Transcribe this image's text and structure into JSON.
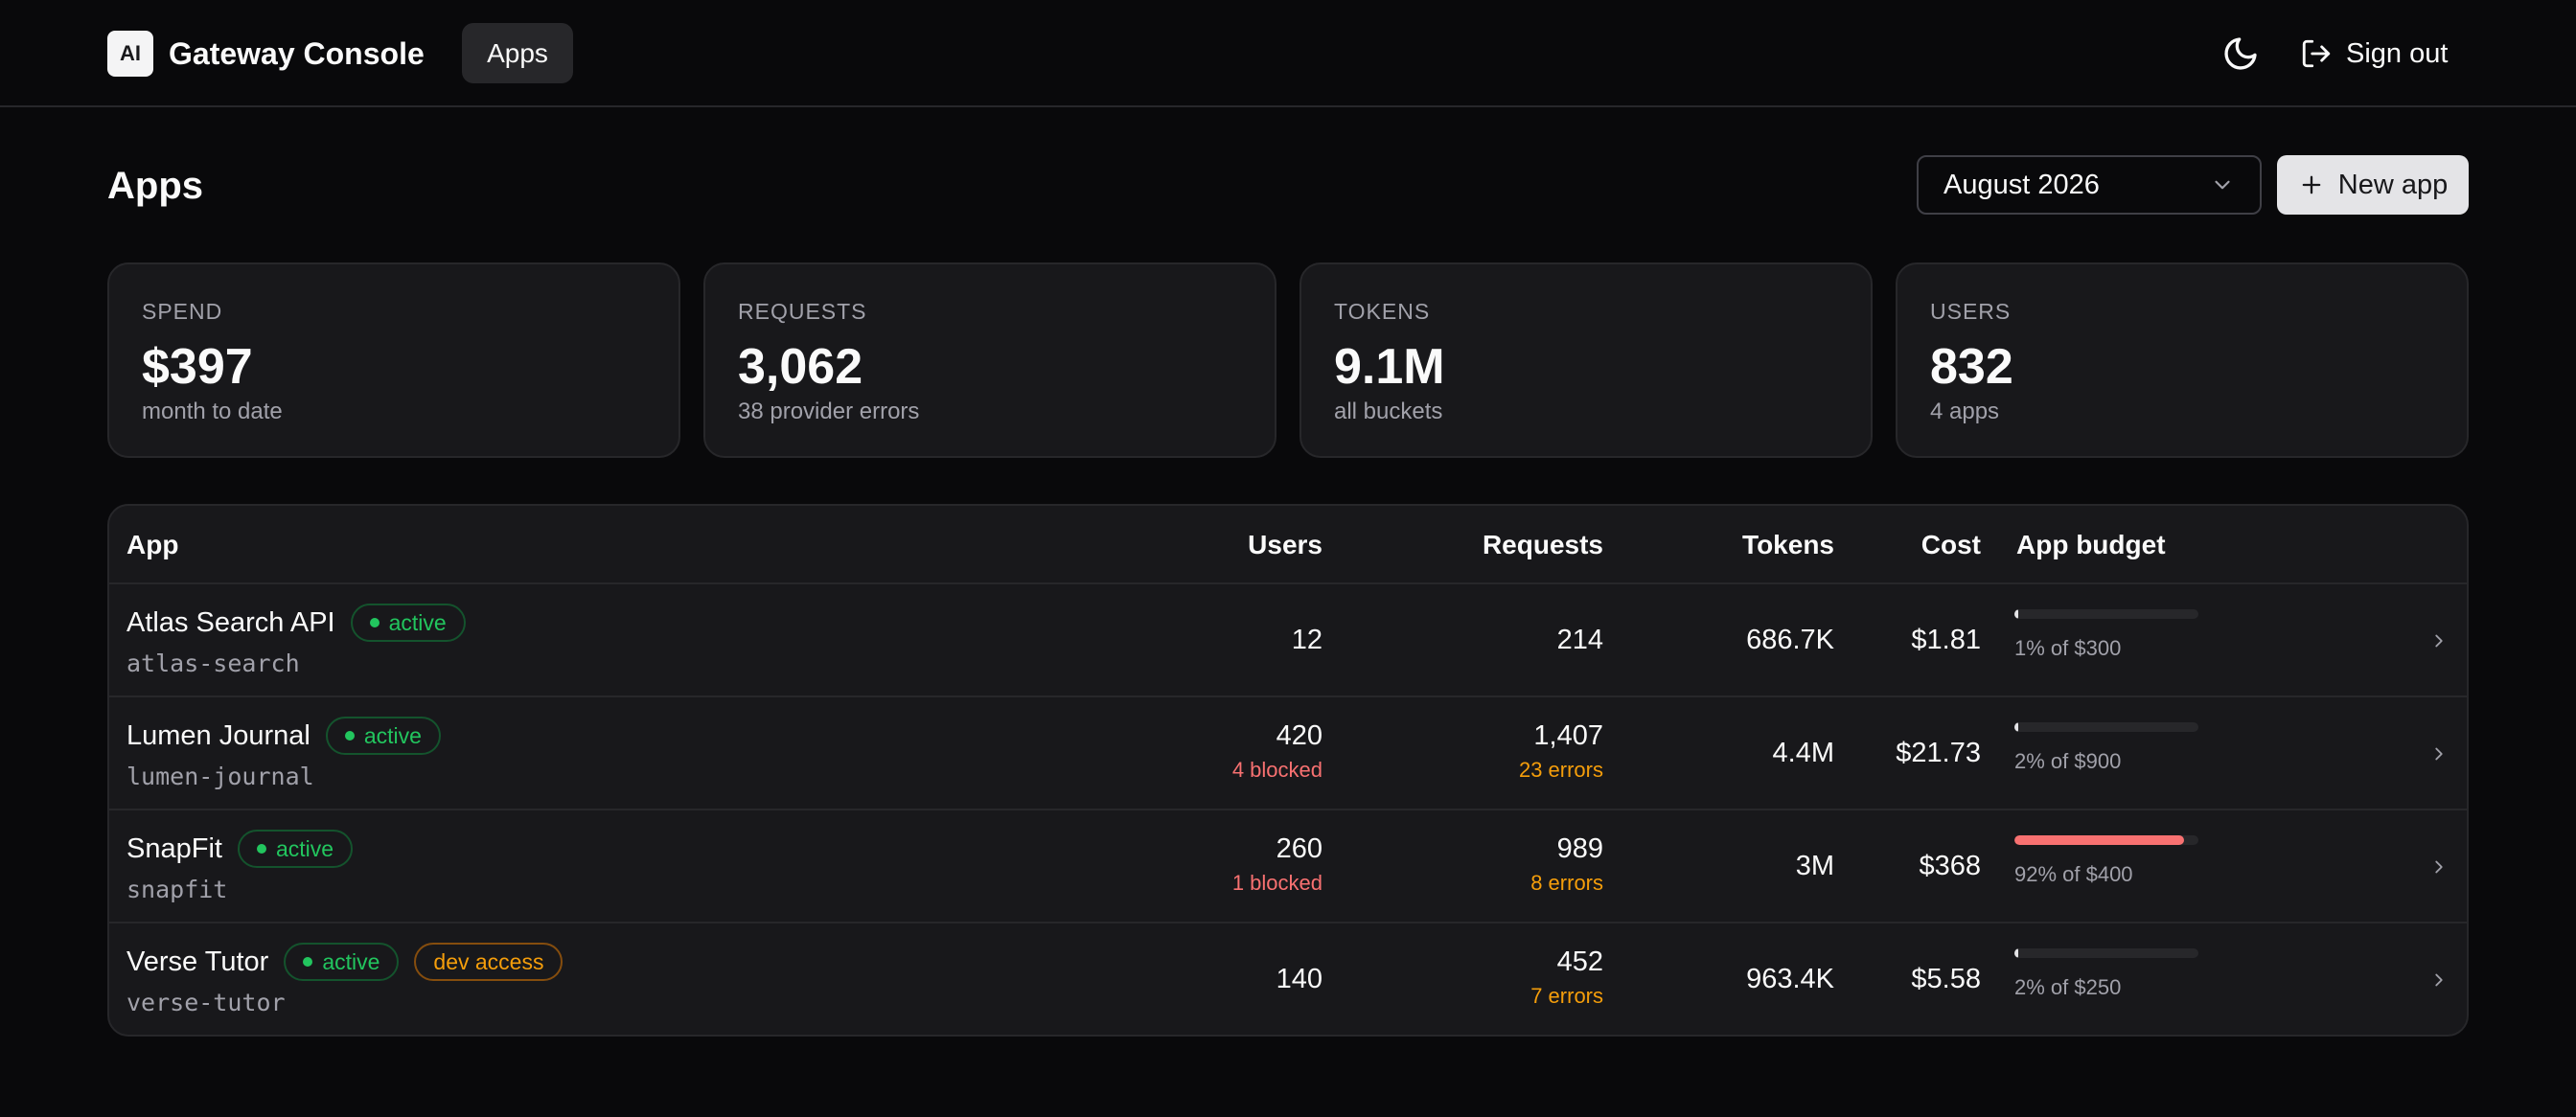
{
  "header": {
    "logo_text": "AI",
    "title": "Gateway Console",
    "nav": [
      {
        "label": "Apps",
        "active": true
      }
    ],
    "theme_icon": "moon-icon",
    "sign_out_label": "Sign out",
    "sign_out_icon": "log-out-icon"
  },
  "page": {
    "title": "Apps",
    "month_select": {
      "value": "August 2026",
      "icon": "chevron-down-icon"
    },
    "new_app_label": "New app",
    "new_app_icon": "plus-icon"
  },
  "stats": [
    {
      "label": "SPEND",
      "value": "$397",
      "sub": "month to date"
    },
    {
      "label": "REQUESTS",
      "value": "3,062",
      "sub": "38 provider errors"
    },
    {
      "label": "TOKENS",
      "value": "9.1M",
      "sub": "all buckets"
    },
    {
      "label": "USERS",
      "value": "832",
      "sub": "4 apps"
    }
  ],
  "table": {
    "columns": [
      "App",
      "Users",
      "Requests",
      "Tokens",
      "Cost",
      "App budget"
    ],
    "rows": [
      {
        "name": "Atlas Search API",
        "slug": "atlas-search",
        "badges": [
          "active"
        ],
        "users": "12",
        "users_note": "",
        "requests": "214",
        "requests_note": "",
        "tokens": "686.7K",
        "cost": "$1.81",
        "budget_label": "1% of $300",
        "budget_pct": 1
      },
      {
        "name": "Lumen Journal",
        "slug": "lumen-journal",
        "badges": [
          "active"
        ],
        "users": "420",
        "users_note": "4 blocked",
        "requests": "1,407",
        "requests_note": "23 errors",
        "tokens": "4.4M",
        "cost": "$21.73",
        "budget_label": "2% of $900",
        "budget_pct": 2
      },
      {
        "name": "SnapFit",
        "slug": "snapfit",
        "badges": [
          "active"
        ],
        "users": "260",
        "users_note": "1 blocked",
        "requests": "989",
        "requests_note": "8 errors",
        "tokens": "3M",
        "cost": "$368",
        "budget_label": "92% of $400",
        "budget_pct": 92
      },
      {
        "name": "Verse Tutor",
        "slug": "verse-tutor",
        "badges": [
          "active",
          "dev access"
        ],
        "users": "140",
        "users_note": "",
        "requests": "452",
        "requests_note": "7 errors",
        "tokens": "963.4K",
        "cost": "$5.58",
        "budget_label": "2% of $250",
        "budget_pct": 2
      }
    ]
  },
  "colors": {
    "background": "#09090b",
    "card": "#18181b",
    "border": "#27272a",
    "active": "#22c55e",
    "warning": "#f59e0b",
    "danger": "#f87171"
  }
}
